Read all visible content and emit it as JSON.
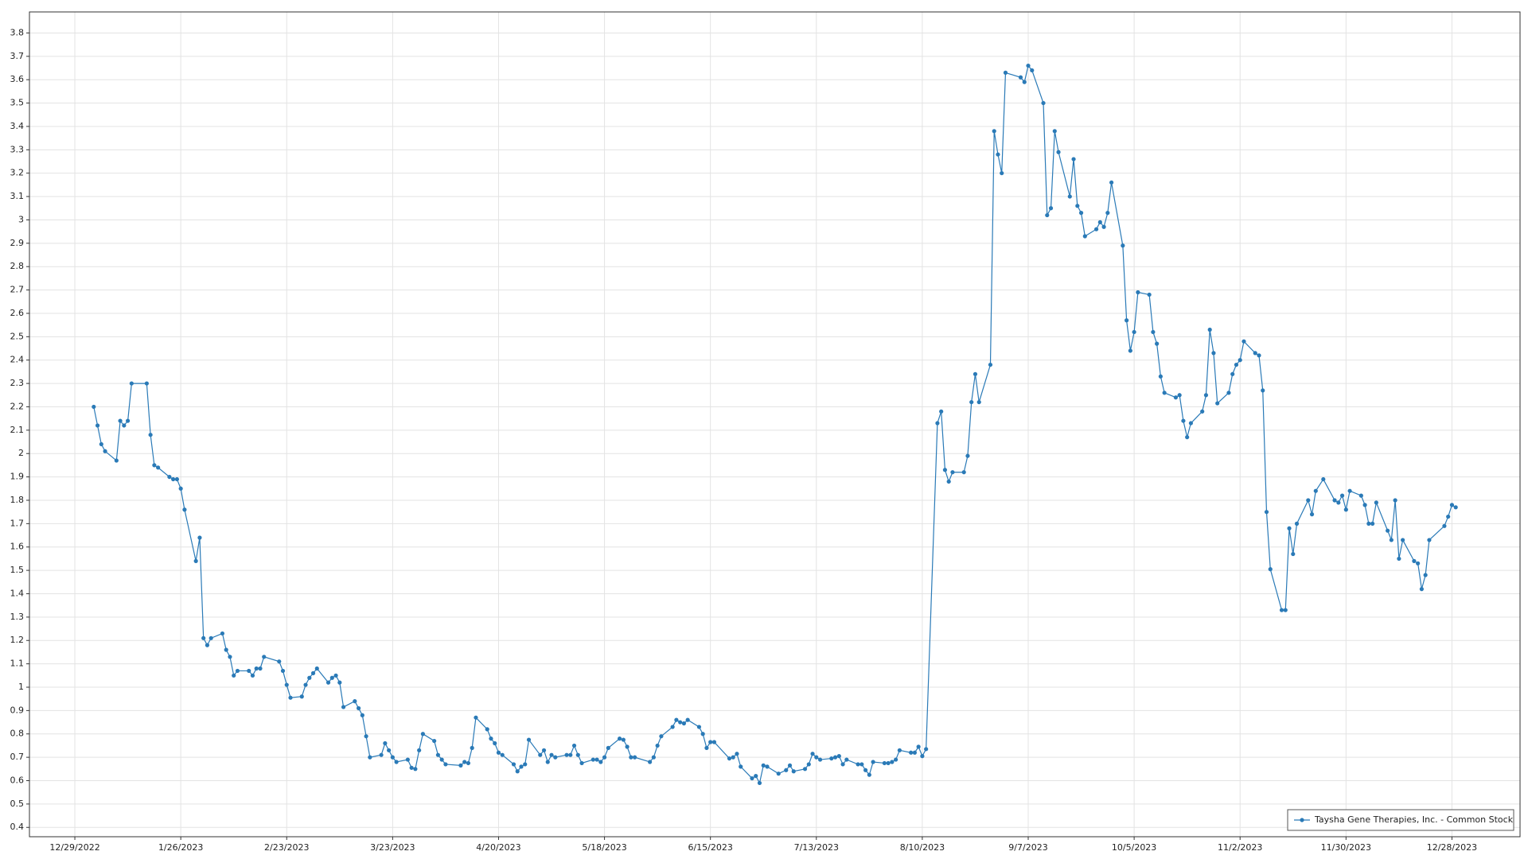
{
  "chart_data": {
    "type": "line",
    "x": [
      "1/3/2023",
      "1/4/2023",
      "1/5/2023",
      "1/6/2023",
      "1/9/2023",
      "1/10/2023",
      "1/11/2023",
      "1/12/2023",
      "1/13/2023",
      "1/17/2023",
      "1/18/2023",
      "1/19/2023",
      "1/20/2023",
      "1/23/2023",
      "1/24/2023",
      "1/25/2023",
      "1/26/2023",
      "1/27/2023",
      "1/30/2023",
      "1/31/2023",
      "2/1/2023",
      "2/2/2023",
      "2/3/2023",
      "2/6/2023",
      "2/7/2023",
      "2/8/2023",
      "2/9/2023",
      "2/10/2023",
      "2/13/2023",
      "2/14/2023",
      "2/15/2023",
      "2/16/2023",
      "2/17/2023",
      "2/21/2023",
      "2/22/2023",
      "2/23/2023",
      "2/24/2023",
      "2/27/2023",
      "2/28/2023",
      "3/1/2023",
      "3/2/2023",
      "3/3/2023",
      "3/6/2023",
      "3/7/2023",
      "3/8/2023",
      "3/9/2023",
      "3/10/2023",
      "3/13/2023",
      "3/14/2023",
      "3/15/2023",
      "3/16/2023",
      "3/17/2023",
      "3/20/2023",
      "3/21/2023",
      "3/22/2023",
      "3/23/2023",
      "3/24/2023",
      "3/27/2023",
      "3/28/2023",
      "3/29/2023",
      "3/30/2023",
      "3/31/2023",
      "4/3/2023",
      "4/4/2023",
      "4/5/2023",
      "4/6/2023",
      "4/10/2023",
      "4/11/2023",
      "4/12/2023",
      "4/13/2023",
      "4/14/2023",
      "4/17/2023",
      "4/18/2023",
      "4/19/2023",
      "4/20/2023",
      "4/21/2023",
      "4/24/2023",
      "4/25/2023",
      "4/26/2023",
      "4/27/2023",
      "4/28/2023",
      "5/1/2023",
      "5/2/2023",
      "5/3/2023",
      "5/4/2023",
      "5/5/2023",
      "5/8/2023",
      "5/9/2023",
      "5/10/2023",
      "5/11/2023",
      "5/12/2023",
      "5/15/2023",
      "5/16/2023",
      "5/17/2023",
      "5/18/2023",
      "5/19/2023",
      "5/22/2023",
      "5/23/2023",
      "5/24/2023",
      "5/25/2023",
      "5/26/2023",
      "5/30/2023",
      "5/31/2023",
      "6/1/2023",
      "6/2/2023",
      "6/5/2023",
      "6/6/2023",
      "6/7/2023",
      "6/8/2023",
      "6/9/2023",
      "6/12/2023",
      "6/13/2023",
      "6/14/2023",
      "6/15/2023",
      "6/16/2023",
      "6/20/2023",
      "6/21/2023",
      "6/22/2023",
      "6/23/2023",
      "6/26/2023",
      "6/27/2023",
      "6/28/2023",
      "6/29/2023",
      "6/30/2023",
      "7/3/2023",
      "7/5/2023",
      "7/6/2023",
      "7/7/2023",
      "7/10/2023",
      "7/11/2023",
      "7/12/2023",
      "7/13/2023",
      "7/14/2023",
      "7/17/2023",
      "7/18/2023",
      "7/19/2023",
      "7/20/2023",
      "7/21/2023",
      "7/24/2023",
      "7/25/2023",
      "7/26/2023",
      "7/27/2023",
      "7/28/2023",
      "7/31/2023",
      "8/1/2023",
      "8/2/2023",
      "8/3/2023",
      "8/4/2023",
      "8/7/2023",
      "8/8/2023",
      "8/9/2023",
      "8/10/2023",
      "8/11/2023",
      "8/14/2023",
      "8/15/2023",
      "8/16/2023",
      "8/17/2023",
      "8/18/2023",
      "8/21/2023",
      "8/22/2023",
      "8/23/2023",
      "8/24/2023",
      "8/25/2023",
      "8/28/2023",
      "8/29/2023",
      "8/30/2023",
      "8/31/2023",
      "9/1/2023",
      "9/5/2023",
      "9/6/2023",
      "9/7/2023",
      "9/8/2023",
      "9/11/2023",
      "9/12/2023",
      "9/13/2023",
      "9/14/2023",
      "9/15/2023",
      "9/18/2023",
      "9/19/2023",
      "9/20/2023",
      "9/21/2023",
      "9/22/2023",
      "9/25/2023",
      "9/26/2023",
      "9/27/2023",
      "9/28/2023",
      "9/29/2023",
      "10/2/2023",
      "10/3/2023",
      "10/4/2023",
      "10/5/2023",
      "10/6/2023",
      "10/9/2023",
      "10/10/2023",
      "10/11/2023",
      "10/12/2023",
      "10/13/2023",
      "10/16/2023",
      "10/17/2023",
      "10/18/2023",
      "10/19/2023",
      "10/20/2023",
      "10/23/2023",
      "10/24/2023",
      "10/25/2023",
      "10/26/2023",
      "10/27/2023",
      "10/30/2023",
      "10/31/2023",
      "11/1/2023",
      "11/2/2023",
      "11/3/2023",
      "11/6/2023",
      "11/7/2023",
      "11/8/2023",
      "11/9/2023",
      "11/10/2023",
      "11/13/2023",
      "11/14/2023",
      "11/15/2023",
      "11/16/2023",
      "11/17/2023",
      "11/20/2023",
      "11/21/2023",
      "11/22/2023",
      "11/24/2023",
      "11/27/2023",
      "11/28/2023",
      "11/29/2023",
      "11/30/2023",
      "12/1/2023",
      "12/4/2023",
      "12/5/2023",
      "12/6/2023",
      "12/7/2023",
      "12/8/2023",
      "12/11/2023",
      "12/12/2023",
      "12/13/2023",
      "12/14/2023",
      "12/15/2023",
      "12/18/2023",
      "12/19/2023",
      "12/20/2023",
      "12/21/2023",
      "12/22/2023",
      "12/26/2023",
      "12/27/2023",
      "12/28/2023",
      "12/29/2023"
    ],
    "series": [
      {
        "name": "Taysha Gene Therapies, Inc. - Common Stock",
        "color": "#2a7ab7",
        "values": [
          2.2,
          2.12,
          2.04,
          2.01,
          1.97,
          2.14,
          2.12,
          2.14,
          2.3,
          2.3,
          2.08,
          1.95,
          1.94,
          1.9,
          1.89,
          1.89,
          1.85,
          1.76,
          1.54,
          1.64,
          1.21,
          1.18,
          1.21,
          1.23,
          1.16,
          1.13,
          1.05,
          1.07,
          1.07,
          1.05,
          1.08,
          1.08,
          1.13,
          1.11,
          1.07,
          1.01,
          0.955,
          0.96,
          1.01,
          1.04,
          1.06,
          1.08,
          1.02,
          1.04,
          1.05,
          1.02,
          0.915,
          0.94,
          0.91,
          0.88,
          0.79,
          0.7,
          0.71,
          0.76,
          0.73,
          0.7,
          0.68,
          0.69,
          0.655,
          0.65,
          0.73,
          0.8,
          0.77,
          0.71,
          0.69,
          0.67,
          0.665,
          0.68,
          0.675,
          0.74,
          0.87,
          0.82,
          0.78,
          0.76,
          0.72,
          0.71,
          0.67,
          0.64,
          0.66,
          0.67,
          0.775,
          0.71,
          0.73,
          0.68,
          0.71,
          0.7,
          0.71,
          0.71,
          0.75,
          0.71,
          0.675,
          0.69,
          0.69,
          0.68,
          0.7,
          0.74,
          0.78,
          0.775,
          0.745,
          0.7,
          0.7,
          0.68,
          0.7,
          0.75,
          0.79,
          0.83,
          0.86,
          0.85,
          0.845,
          0.86,
          0.83,
          0.8,
          0.74,
          0.765,
          0.765,
          0.695,
          0.7,
          0.715,
          0.66,
          0.61,
          0.62,
          0.59,
          0.665,
          0.66,
          0.63,
          0.645,
          0.665,
          0.64,
          0.65,
          0.67,
          0.715,
          0.7,
          0.69,
          0.695,
          0.7,
          0.705,
          0.67,
          0.69,
          0.67,
          0.67,
          0.645,
          0.625,
          0.68,
          0.675,
          0.675,
          0.68,
          0.69,
          0.73,
          0.72,
          0.72,
          0.745,
          0.705,
          0.735,
          2.13,
          2.18,
          1.93,
          1.88,
          1.92,
          1.92,
          1.99,
          2.22,
          2.34,
          2.22,
          2.38,
          3.38,
          3.28,
          3.2,
          3.63,
          3.61,
          3.59,
          3.66,
          3.64,
          3.5,
          3.02,
          3.05,
          3.38,
          3.29,
          3.1,
          3.26,
          3.06,
          3.03,
          2.93,
          2.96,
          2.99,
          2.97,
          3.03,
          3.16,
          2.89,
          2.57,
          2.44,
          2.52,
          2.69,
          2.68,
          2.52,
          2.47,
          2.33,
          2.26,
          2.24,
          2.25,
          2.14,
          2.07,
          2.13,
          2.18,
          2.25,
          2.53,
          2.43,
          2.215,
          2.26,
          2.34,
          2.38,
          2.4,
          2.48,
          2.43,
          2.42,
          2.27,
          1.75,
          1.505,
          1.33,
          1.33,
          1.68,
          1.57,
          1.7,
          1.8,
          1.74,
          1.84,
          1.89,
          1.8,
          1.79,
          1.82,
          1.76,
          1.84,
          1.82,
          1.78,
          1.7,
          1.7,
          1.79,
          1.67,
          1.63,
          1.8,
          1.55,
          1.63,
          1.54,
          1.53,
          1.42,
          1.48,
          1.63,
          1.69,
          1.73,
          1.78,
          1.77
        ]
      }
    ],
    "xlim": [
      "12/17/2022",
      "1/15/2024"
    ],
    "xticks": [
      "12/29/2022",
      "1/26/2023",
      "2/23/2023",
      "3/23/2023",
      "4/20/2023",
      "5/18/2023",
      "6/15/2023",
      "7/13/2023",
      "8/10/2023",
      "9/7/2023",
      "10/5/2023",
      "11/2/2023",
      "11/30/2023",
      "12/28/2023"
    ],
    "ylim": [
      0.36,
      3.89
    ],
    "yticks": [
      0.4,
      0.5,
      0.6,
      0.7,
      0.8,
      0.9,
      1,
      1.1,
      1.2,
      1.3,
      1.4,
      1.5,
      1.6,
      1.7,
      1.8,
      1.9,
      2,
      2.1,
      2.2,
      2.3,
      2.4,
      2.5,
      2.6,
      2.7,
      2.8,
      2.9,
      3,
      3.1,
      3.2,
      3.3,
      3.4,
      3.5,
      3.6,
      3.7,
      3.8
    ],
    "grid": true,
    "legend": "lower right"
  }
}
